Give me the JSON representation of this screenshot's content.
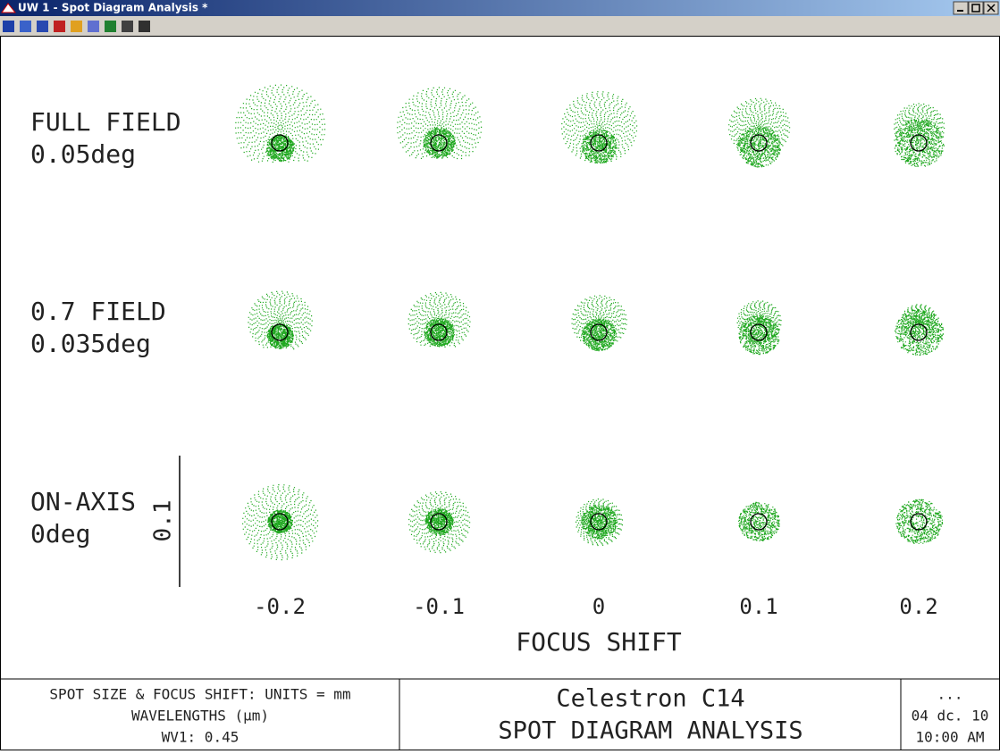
{
  "window": {
    "title": "UW 1 - Spot Diagram Analysis *"
  },
  "plot": {
    "fields": [
      {
        "name": "FULL FIELD",
        "angle": "0.05deg"
      },
      {
        "name": "0.7 FIELD",
        "angle": "0.035deg"
      },
      {
        "name": "ON-AXIS",
        "angle": "0deg"
      }
    ],
    "focus_shifts": [
      "-0.2",
      "-0.1",
      "0",
      "0.1",
      "0.2"
    ],
    "scale_label": "0.1",
    "x_axis_label": "FOCUS SHIFT"
  },
  "footer": {
    "left": [
      "SPOT SIZE & FOCUS SHIFT: UNITS = mm",
      "WAVELENGTHS (µm)",
      "WV1: 0.45"
    ],
    "center": [
      "Celestron C14",
      "SPOT DIAGRAM ANALYSIS"
    ],
    "right": [
      "...",
      "04 dc. 10",
      "10:00 AM"
    ]
  }
}
